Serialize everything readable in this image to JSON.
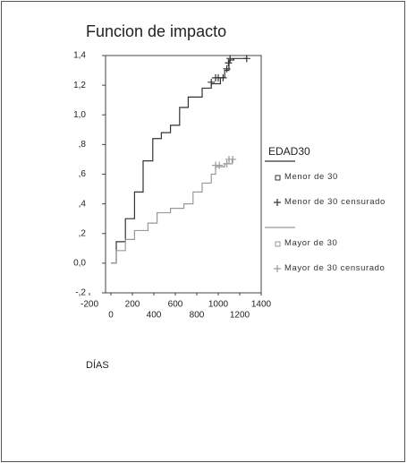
{
  "chart_data": {
    "type": "line",
    "title": "Funcion de impacto",
    "xlabel": "DÍAS",
    "legend_title": "EDAD30",
    "xlim": [
      -200,
      1400
    ],
    "xticks": [
      -200,
      0,
      200,
      400,
      600,
      800,
      1000,
      1200,
      1400
    ],
    "ylim": [
      -0.2,
      1.4
    ],
    "yticks": [
      {
        "value": -0.2,
        "label": "-,2"
      },
      {
        "value": 0,
        "label": "0,0"
      },
      {
        "value": 0.2,
        "label": ",2"
      },
      {
        "value": 0.4,
        "label": ",4"
      },
      {
        "value": 0.6,
        "label": ",6"
      },
      {
        "value": 0.8,
        "label": ",8"
      },
      {
        "value": 1,
        "label": "1,0"
      },
      {
        "value": 1.2,
        "label": "1,2"
      },
      {
        "value": 1.4,
        "label": "1,4"
      }
    ],
    "series": [
      {
        "name": "Menor de 30",
        "color": "#333333",
        "style": "step",
        "x": [
          0,
          50,
          135,
          220,
          300,
          390,
          470,
          555,
          640,
          720,
          850,
          935,
          1020,
          1060,
          1100,
          1145,
          1270
        ],
        "values": [
          0,
          0.145,
          0.3,
          0.48,
          0.69,
          0.84,
          0.88,
          0.93,
          1.05,
          1.12,
          1.18,
          1.21,
          1.25,
          1.3,
          1.37,
          1.38,
          1.38
        ]
      },
      {
        "name": "Menor de 30 censurado",
        "color": "#333333",
        "style": "plus",
        "x": [
          935,
          975,
          1000,
          1045,
          1080,
          1095,
          1110,
          1265
        ],
        "values": [
          1.22,
          1.25,
          1.25,
          1.25,
          1.31,
          1.35,
          1.38,
          1.38
        ]
      },
      {
        "name": "Mayor de 30",
        "color": "#999999",
        "style": "step",
        "x": [
          0,
          50,
          135,
          220,
          345,
          430,
          555,
          680,
          765,
          850,
          935,
          975,
          1060,
          1130
        ],
        "values": [
          0,
          0.085,
          0.16,
          0.22,
          0.27,
          0.34,
          0.37,
          0.4,
          0.48,
          0.54,
          0.6,
          0.65,
          0.67,
          0.7
        ]
      },
      {
        "name": "Mayor de 30 censurado",
        "color": "#999999",
        "style": "plus",
        "x": [
          975,
          1010,
          1080,
          1100,
          1135
        ],
        "values": [
          0.66,
          0.66,
          0.67,
          0.7,
          0.7
        ]
      }
    ]
  }
}
